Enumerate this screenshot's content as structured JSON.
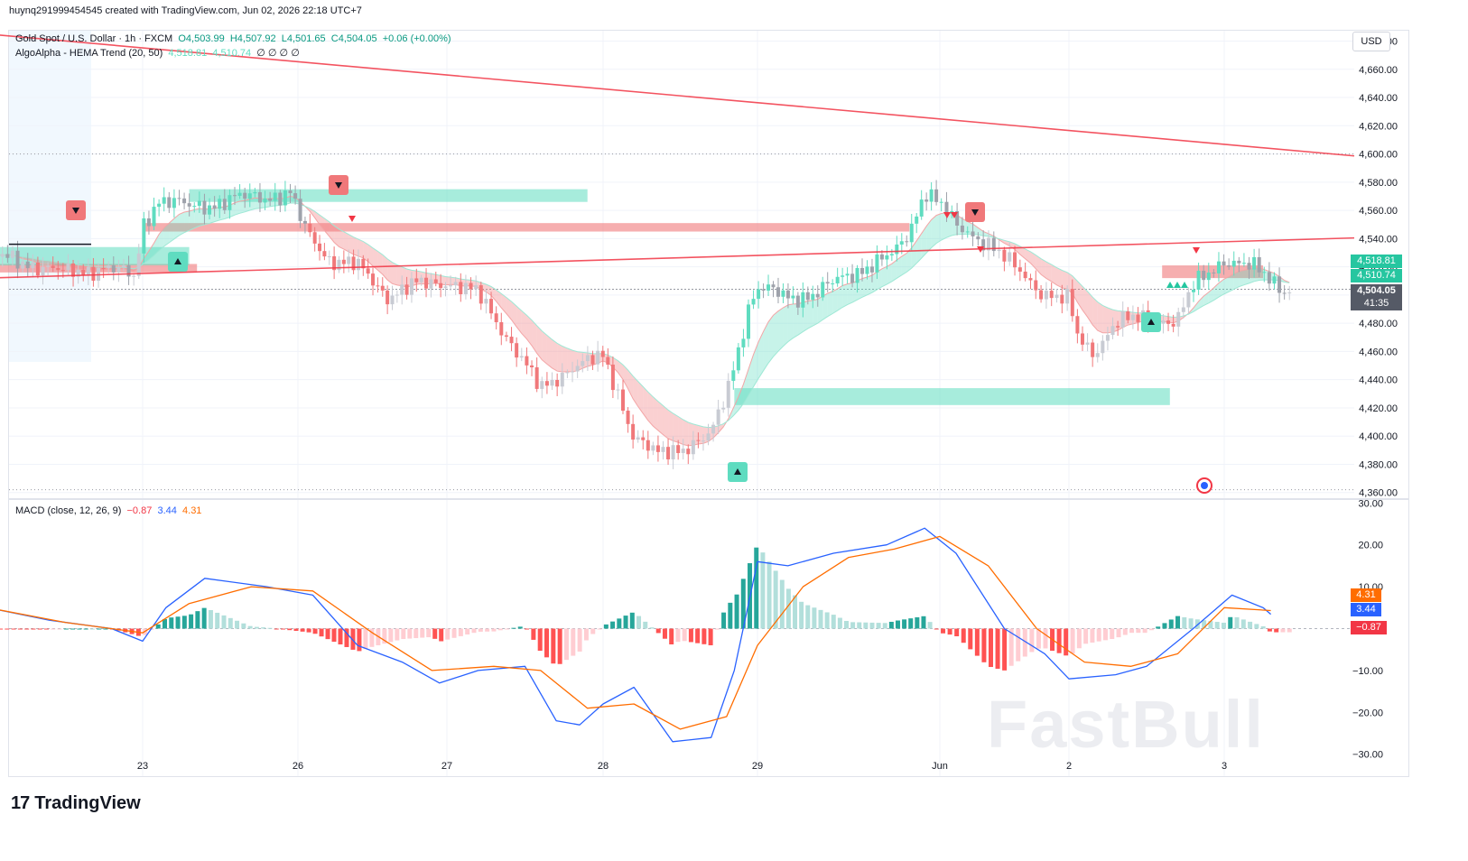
{
  "header": {
    "user_line": "huynq291999454545 created with TradingView.com, Jun 02, 2026 22:18 UTC+7"
  },
  "legend": {
    "symbol": "Gold Spot / U.S. Dollar · 1h · FXCM",
    "o": "O4,503.99",
    "h": "H4,507.92",
    "l": "L4,501.65",
    "c": "C4,504.05",
    "chg": "+0.06 (+0.00%)",
    "indicator": "AlgoAlpha - HEMA Trend (20, 50)",
    "ind_v1": "4,518.81",
    "ind_v2": "4,510.74",
    "ind_extra": "∅ ∅ ∅ ∅"
  },
  "macd_legend": {
    "label": "MACD (close, 12, 26, 9)",
    "hist": "−0.87",
    "macd": "3.44",
    "signal": "4.31"
  },
  "currency_button": "USD",
  "price_labels": {
    "fast": "4,518.81",
    "slow": "4,510.74",
    "last": "4,504.05",
    "countdown": "41:35",
    "signal": "4.31",
    "macd": "3.44",
    "hist": "−0.87"
  },
  "brand": "TradingView",
  "watermark": "FastBull",
  "colors": {
    "bull": "#5fdcc0",
    "bear": "#f0787a",
    "trendline": "#f23645",
    "macd_line": "#2962ff",
    "signal_line": "#ff6d00",
    "hist_up_strong": "#26a69a",
    "hist_up_weak": "#b2dfdb",
    "hist_down_strong": "#ff5252",
    "hist_down_weak": "#ffcdd2"
  },
  "chart_data": [
    {
      "type": "candlestick",
      "title": "Gold Spot / U.S. Dollar · 1h · FXCM",
      "x_tick_labels": [
        "23",
        "26",
        "27",
        "28",
        "29",
        "Jun",
        "2",
        "3"
      ],
      "y_tick_labels": [
        "4,360.00",
        "4,380.00",
        "4,400.00",
        "4,420.00",
        "4,440.00",
        "4,460.00",
        "4,480.00",
        "4,500.00",
        "4,520.00",
        "4,540.00",
        "4,560.00",
        "4,580.00",
        "4,600.00",
        "4,620.00",
        "4,640.00",
        "4,660.00",
        "4,680.00"
      ],
      "ylim": [
        4356,
        4688
      ],
      "close_path": [
        {
          "x": 0.0,
          "y": 4528
        },
        {
          "x": 0.3,
          "y": 4522
        },
        {
          "x": 0.5,
          "y": 4515
        },
        {
          "x": 0.75,
          "y": 4520
        },
        {
          "x": 0.95,
          "y": 4512
        },
        {
          "x": 1.0,
          "y": 4550
        },
        {
          "x": 1.1,
          "y": 4568
        },
        {
          "x": 1.3,
          "y": 4562
        },
        {
          "x": 1.6,
          "y": 4568
        },
        {
          "x": 1.95,
          "y": 4572
        },
        {
          "x": 2.05,
          "y": 4545
        },
        {
          "x": 2.2,
          "y": 4527
        },
        {
          "x": 2.4,
          "y": 4520
        },
        {
          "x": 2.6,
          "y": 4500
        },
        {
          "x": 2.8,
          "y": 4507
        },
        {
          "x": 3.0,
          "y": 4510
        },
        {
          "x": 3.2,
          "y": 4500
        },
        {
          "x": 3.3,
          "y": 4485
        },
        {
          "x": 3.45,
          "y": 4460
        },
        {
          "x": 3.6,
          "y": 4432
        },
        {
          "x": 3.8,
          "y": 4450
        },
        {
          "x": 4.0,
          "y": 4455
        },
        {
          "x": 4.1,
          "y": 4430
        },
        {
          "x": 4.2,
          "y": 4400
        },
        {
          "x": 4.35,
          "y": 4386
        },
        {
          "x": 4.5,
          "y": 4392
        },
        {
          "x": 4.7,
          "y": 4400
        },
        {
          "x": 4.8,
          "y": 4430
        },
        {
          "x": 4.95,
          "y": 4495
        },
        {
          "x": 5.0,
          "y": 4505
        },
        {
          "x": 5.2,
          "y": 4498
        },
        {
          "x": 5.4,
          "y": 4502
        },
        {
          "x": 5.7,
          "y": 4520
        },
        {
          "x": 5.9,
          "y": 4528
        },
        {
          "x": 6.0,
          "y": 4545
        },
        {
          "x": 6.1,
          "y": 4575
        },
        {
          "x": 6.2,
          "y": 4565
        },
        {
          "x": 6.3,
          "y": 4548
        },
        {
          "x": 6.5,
          "y": 4538
        },
        {
          "x": 6.65,
          "y": 4520
        },
        {
          "x": 6.8,
          "y": 4505
        },
        {
          "x": 7.0,
          "y": 4496
        },
        {
          "x": 7.05,
          "y": 4470
        },
        {
          "x": 7.15,
          "y": 4458
        },
        {
          "x": 7.3,
          "y": 4482
        },
        {
          "x": 7.5,
          "y": 4482
        },
        {
          "x": 7.7,
          "y": 4483
        },
        {
          "x": 7.8,
          "y": 4505
        },
        {
          "x": 8.0,
          "y": 4526
        },
        {
          "x": 8.2,
          "y": 4518
        },
        {
          "x": 8.4,
          "y": 4504
        }
      ],
      "supply_zones": [
        {
          "x_start": 0.0,
          "x_end": 1.35,
          "low": 4516,
          "high": 4522
        },
        {
          "x_start": 1.0,
          "x_end": 6.0,
          "low": 4545,
          "high": 4551
        },
        {
          "x_start": 7.6,
          "x_end": 8.25,
          "low": 4512,
          "high": 4521
        }
      ],
      "demand_zones": [
        {
          "x_start": 0.0,
          "x_end": 1.3,
          "low": 4521,
          "high": 4534
        },
        {
          "x_start": 1.3,
          "x_end": 3.9,
          "low": 4566,
          "high": 4575
        },
        {
          "x_start": 4.85,
          "x_end": 7.65,
          "low": 4422,
          "high": 4434
        }
      ],
      "trendlines": [
        {
          "x1": 0.0,
          "y1": 4685,
          "x2": 9.0,
          "y2": 4597
        },
        {
          "x1": 0.0,
          "y1": 4512,
          "x2": 9.0,
          "y2": 4541
        }
      ]
    },
    {
      "type": "macd",
      "title": "MACD (close, 12, 26, 9)",
      "y_tick_labels": [
        "−30.00",
        "−20.00",
        "−10.00",
        "0.00",
        "10.00",
        "20.00",
        "30.00"
      ],
      "ylim": [
        -32,
        30.5
      ],
      "macd": [
        {
          "x": 0.0,
          "y": 5
        },
        {
          "x": 0.4,
          "y": 2
        },
        {
          "x": 0.8,
          "y": 0
        },
        {
          "x": 1.0,
          "y": -3
        },
        {
          "x": 1.15,
          "y": 5
        },
        {
          "x": 1.4,
          "y": 12
        },
        {
          "x": 1.8,
          "y": 10
        },
        {
          "x": 2.1,
          "y": 8
        },
        {
          "x": 2.4,
          "y": -4
        },
        {
          "x": 2.7,
          "y": -8
        },
        {
          "x": 2.95,
          "y": -13
        },
        {
          "x": 3.2,
          "y": -10
        },
        {
          "x": 3.5,
          "y": -9
        },
        {
          "x": 3.7,
          "y": -22
        },
        {
          "x": 3.85,
          "y": -23
        },
        {
          "x": 4.0,
          "y": -18
        },
        {
          "x": 4.2,
          "y": -14
        },
        {
          "x": 4.45,
          "y": -27
        },
        {
          "x": 4.7,
          "y": -26
        },
        {
          "x": 4.85,
          "y": -10
        },
        {
          "x": 5.0,
          "y": 16
        },
        {
          "x": 5.2,
          "y": 15
        },
        {
          "x": 5.5,
          "y": 18
        },
        {
          "x": 5.85,
          "y": 20
        },
        {
          "x": 6.1,
          "y": 24
        },
        {
          "x": 6.3,
          "y": 18
        },
        {
          "x": 6.6,
          "y": 0
        },
        {
          "x": 6.85,
          "y": -6
        },
        {
          "x": 7.0,
          "y": -12
        },
        {
          "x": 7.3,
          "y": -11
        },
        {
          "x": 7.5,
          "y": -9
        },
        {
          "x": 7.8,
          "y": 0
        },
        {
          "x": 8.05,
          "y": 8
        },
        {
          "x": 8.25,
          "y": 5
        },
        {
          "x": 8.3,
          "y": 3.44
        }
      ],
      "signal": [
        {
          "x": 0.0,
          "y": 5
        },
        {
          "x": 0.5,
          "y": 1.5
        },
        {
          "x": 1.0,
          "y": -1
        },
        {
          "x": 1.3,
          "y": 6
        },
        {
          "x": 1.7,
          "y": 10
        },
        {
          "x": 2.1,
          "y": 9
        },
        {
          "x": 2.5,
          "y": -1
        },
        {
          "x": 2.9,
          "y": -10
        },
        {
          "x": 3.3,
          "y": -9
        },
        {
          "x": 3.6,
          "y": -10
        },
        {
          "x": 3.9,
          "y": -19
        },
        {
          "x": 4.2,
          "y": -18
        },
        {
          "x": 4.5,
          "y": -24
        },
        {
          "x": 4.8,
          "y": -21
        },
        {
          "x": 5.0,
          "y": -4
        },
        {
          "x": 5.3,
          "y": 10
        },
        {
          "x": 5.6,
          "y": 17
        },
        {
          "x": 5.9,
          "y": 19
        },
        {
          "x": 6.2,
          "y": 22
        },
        {
          "x": 6.5,
          "y": 15
        },
        {
          "x": 6.8,
          "y": 0
        },
        {
          "x": 7.1,
          "y": -8
        },
        {
          "x": 7.4,
          "y": -9
        },
        {
          "x": 7.7,
          "y": -6
        },
        {
          "x": 8.0,
          "y": 5
        },
        {
          "x": 8.3,
          "y": 4.31
        }
      ]
    }
  ]
}
